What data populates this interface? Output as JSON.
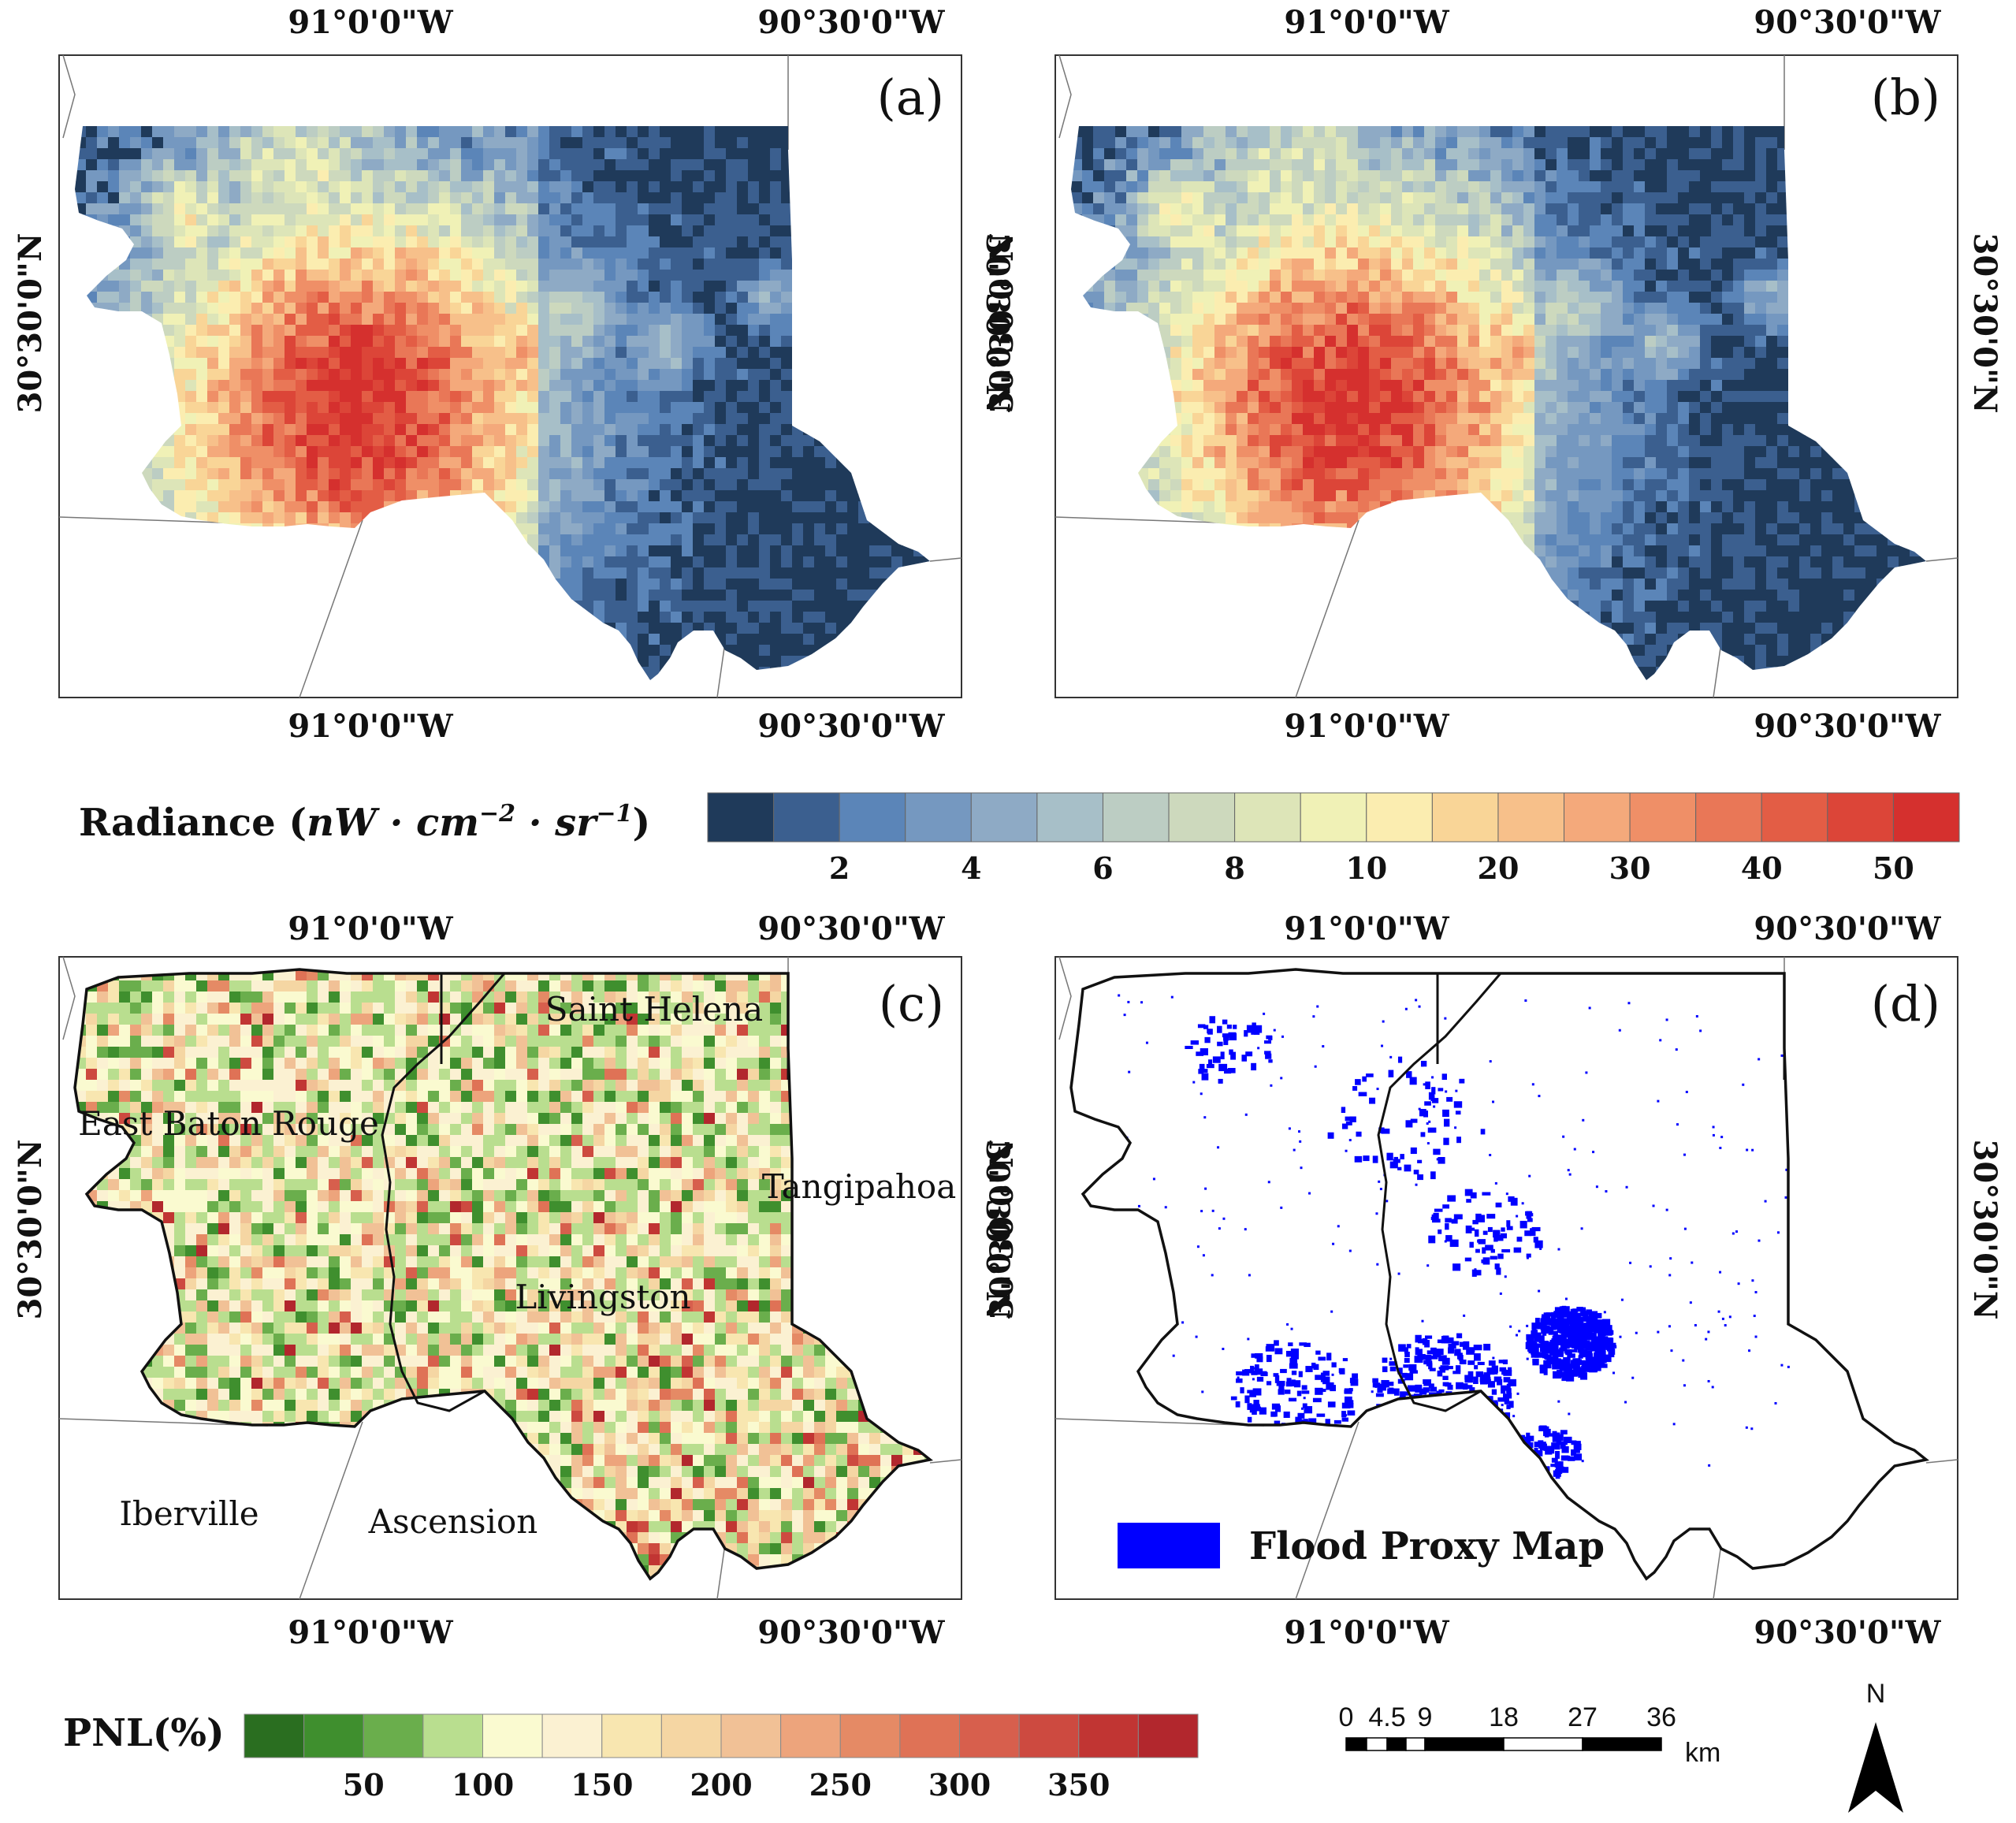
{
  "coords": {
    "lon_left": "91°0'0\"W",
    "lon_right": "90°30'0\"W",
    "lat": "30°30'0\"N"
  },
  "panels": [
    {
      "id": "a",
      "label": "(a)",
      "type": "radiance"
    },
    {
      "id": "b",
      "label": "(b)",
      "type": "radiance"
    },
    {
      "id": "c",
      "label": "(c)",
      "type": "pnl"
    },
    {
      "id": "d",
      "label": "(d)",
      "type": "flood"
    }
  ],
  "parishes": {
    "east_baton_rouge": "East Baton Rouge",
    "saint_helena": "Saint Helena",
    "tangipahoa": "Tangipahoa",
    "livingston": "Livingston",
    "iberville": "Iberville",
    "ascension": "Ascension"
  },
  "radiance_legend": {
    "title": "Radiance (nW · cm−2 · sr−1)",
    "title_main": "Radiance (",
    "title_units": "nW · cm",
    "title_exp1": "−2",
    "title_mid": " · sr",
    "title_exp2": "−1",
    "title_end": ")",
    "ticks": [
      "2",
      "4",
      "6",
      "8",
      "10",
      "20",
      "30",
      "40",
      "50"
    ],
    "colors": [
      "#1f3a5a",
      "#3b5f8f",
      "#5b85b8",
      "#7598c0",
      "#8eaac5",
      "#a7bfc8",
      "#bccdc3",
      "#cdd9bd",
      "#dde5b8",
      "#f0f1b6",
      "#fbedb0",
      "#f9d597",
      "#f7c08a",
      "#f4a97b",
      "#ef8f67",
      "#e97757",
      "#e35d45",
      "#dc4538",
      "#d5302e"
    ]
  },
  "pnl_legend": {
    "title": "PNL(%)",
    "ticks": [
      "50",
      "100",
      "150",
      "200",
      "250",
      "300",
      "350"
    ],
    "colors": [
      "#2a6e20",
      "#3f8f2e",
      "#6aae4c",
      "#b9de8f",
      "#fafad0",
      "#fbf1d2",
      "#f8e6b0",
      "#f5d6a3",
      "#f1c196",
      "#eda47c",
      "#e58a65",
      "#df7256",
      "#d75f4d",
      "#cd4a40",
      "#c13533",
      "#b2272d"
    ]
  },
  "flood_legend": {
    "label": "Flood Proxy Map",
    "color": "#0000ff"
  },
  "scale_bar": {
    "labels": [
      "0",
      "4.5",
      "9",
      "18",
      "27",
      "36"
    ],
    "unit": "km"
  },
  "north_arrow": {
    "label": "N"
  }
}
